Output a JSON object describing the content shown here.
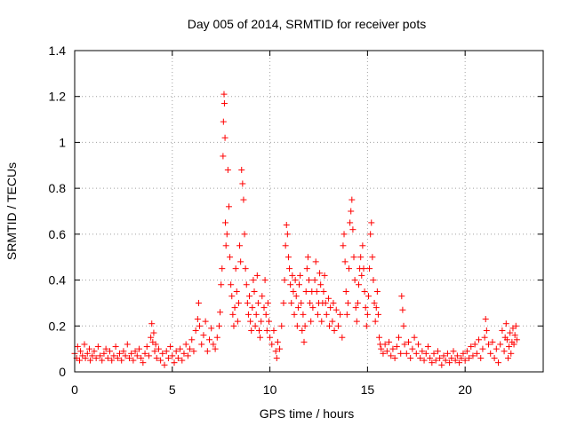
{
  "chart_data": {
    "type": "scatter",
    "title": "Day 005 of 2014, SRMTID for receiver pots",
    "xlabel": "GPS time / hours",
    "ylabel": "SRMTID / TECUs",
    "xlim": [
      0,
      24
    ],
    "ylim": [
      0,
      1.4
    ],
    "xticks": [
      0,
      5,
      10,
      15,
      20
    ],
    "xtick_labels": [
      "0",
      "5",
      "10",
      "15",
      "20"
    ],
    "yticks": [
      0,
      0.2,
      0.4,
      0.6,
      0.8,
      1,
      1.2,
      1.4
    ],
    "ytick_labels": [
      "0",
      "0.2",
      "0.4",
      "0.6",
      "0.8",
      "1",
      "1.2",
      "1.4"
    ],
    "grid": true,
    "marker": "+",
    "color": "#ff0000",
    "series": [
      {
        "name": "SRMTID",
        "points": [
          [
            0.0,
            0.08
          ],
          [
            0.1,
            0.06
          ],
          [
            0.15,
            0.11
          ],
          [
            0.25,
            0.05
          ],
          [
            0.3,
            0.09
          ],
          [
            0.4,
            0.07
          ],
          [
            0.5,
            0.12
          ],
          [
            0.55,
            0.06
          ],
          [
            0.65,
            0.08
          ],
          [
            0.75,
            0.1
          ],
          [
            0.8,
            0.05
          ],
          [
            0.9,
            0.07
          ],
          [
            1.0,
            0.09
          ],
          [
            1.1,
            0.06
          ],
          [
            1.2,
            0.11
          ],
          [
            1.3,
            0.07
          ],
          [
            1.4,
            0.05
          ],
          [
            1.5,
            0.08
          ],
          [
            1.6,
            0.1
          ],
          [
            1.7,
            0.06
          ],
          [
            1.8,
            0.09
          ],
          [
            1.9,
            0.05
          ],
          [
            2.0,
            0.07
          ],
          [
            2.1,
            0.11
          ],
          [
            2.2,
            0.06
          ],
          [
            2.3,
            0.08
          ],
          [
            2.4,
            0.05
          ],
          [
            2.5,
            0.09
          ],
          [
            2.6,
            0.07
          ],
          [
            2.7,
            0.12
          ],
          [
            2.8,
            0.06
          ],
          [
            2.9,
            0.08
          ],
          [
            3.0,
            0.05
          ],
          [
            3.1,
            0.09
          ],
          [
            3.2,
            0.07
          ],
          [
            3.3,
            0.1
          ],
          [
            3.4,
            0.06
          ],
          [
            3.5,
            0.04
          ],
          [
            3.6,
            0.08
          ],
          [
            3.7,
            0.11
          ],
          [
            3.8,
            0.07
          ],
          [
            3.9,
            0.15
          ],
          [
            3.95,
            0.21
          ],
          [
            4.0,
            0.13
          ],
          [
            4.05,
            0.17
          ],
          [
            4.1,
            0.09
          ],
          [
            4.15,
            0.12
          ],
          [
            4.2,
            0.06
          ],
          [
            4.3,
            0.1
          ],
          [
            4.4,
            0.05
          ],
          [
            4.5,
            0.08
          ],
          [
            4.6,
            0.03
          ],
          [
            4.7,
            0.09
          ],
          [
            4.8,
            0.06
          ],
          [
            4.9,
            0.11
          ],
          [
            5.0,
            0.07
          ],
          [
            5.1,
            0.04
          ],
          [
            5.2,
            0.09
          ],
          [
            5.3,
            0.06
          ],
          [
            5.4,
            0.1
          ],
          [
            5.5,
            0.05
          ],
          [
            5.6,
            0.08
          ],
          [
            5.7,
            0.12
          ],
          [
            5.8,
            0.07
          ],
          [
            5.9,
            0.1
          ],
          [
            6.0,
            0.14
          ],
          [
            6.1,
            0.09
          ],
          [
            6.2,
            0.18
          ],
          [
            6.3,
            0.23
          ],
          [
            6.35,
            0.3
          ],
          [
            6.4,
            0.2
          ],
          [
            6.5,
            0.12
          ],
          [
            6.6,
            0.16
          ],
          [
            6.7,
            0.22
          ],
          [
            6.8,
            0.09
          ],
          [
            6.9,
            0.14
          ],
          [
            7.0,
            0.19
          ],
          [
            7.1,
            0.12
          ],
          [
            7.2,
            0.1
          ],
          [
            7.3,
            0.15
          ],
          [
            7.4,
            0.2
          ],
          [
            7.45,
            0.26
          ],
          [
            7.5,
            0.38
          ],
          [
            7.55,
            0.45
          ],
          [
            7.6,
            0.94
          ],
          [
            7.62,
            1.09
          ],
          [
            7.65,
            1.21
          ],
          [
            7.67,
            1.17
          ],
          [
            7.7,
            1.02
          ],
          [
            7.72,
            0.65
          ],
          [
            7.75,
            0.55
          ],
          [
            7.8,
            0.6
          ],
          [
            7.85,
            0.88
          ],
          [
            7.9,
            0.72
          ],
          [
            7.95,
            0.5
          ],
          [
            8.0,
            0.38
          ],
          [
            8.05,
            0.33
          ],
          [
            8.1,
            0.25
          ],
          [
            8.15,
            0.2
          ],
          [
            8.2,
            0.28
          ],
          [
            8.25,
            0.45
          ],
          [
            8.3,
            0.35
          ],
          [
            8.35,
            0.22
          ],
          [
            8.4,
            0.3
          ],
          [
            8.45,
            0.55
          ],
          [
            8.5,
            0.48
          ],
          [
            8.55,
            0.88
          ],
          [
            8.6,
            0.82
          ],
          [
            8.65,
            0.75
          ],
          [
            8.7,
            0.6
          ],
          [
            8.75,
            0.45
          ],
          [
            8.8,
            0.38
          ],
          [
            8.85,
            0.3
          ],
          [
            8.9,
            0.25
          ],
          [
            8.95,
            0.33
          ],
          [
            9.0,
            0.22
          ],
          [
            9.05,
            0.18
          ],
          [
            9.1,
            0.28
          ],
          [
            9.15,
            0.4
          ],
          [
            9.2,
            0.35
          ],
          [
            9.25,
            0.2
          ],
          [
            9.3,
            0.25
          ],
          [
            9.35,
            0.42
          ],
          [
            9.4,
            0.3
          ],
          [
            9.45,
            0.18
          ],
          [
            9.5,
            0.15
          ],
          [
            9.55,
            0.22
          ],
          [
            9.6,
            0.33
          ],
          [
            9.7,
            0.28
          ],
          [
            9.75,
            0.4
          ],
          [
            9.8,
            0.25
          ],
          [
            9.85,
            0.18
          ],
          [
            9.9,
            0.3
          ],
          [
            9.95,
            0.22
          ],
          [
            10.0,
            0.15
          ],
          [
            10.1,
            0.12
          ],
          [
            10.2,
            0.18
          ],
          [
            10.3,
            0.09
          ],
          [
            10.35,
            0.06
          ],
          [
            10.4,
            0.13
          ],
          [
            10.5,
            0.1
          ],
          [
            10.6,
            0.2
          ],
          [
            10.7,
            0.3
          ],
          [
            10.75,
            0.4
          ],
          [
            10.8,
            0.55
          ],
          [
            10.85,
            0.64
          ],
          [
            10.9,
            0.6
          ],
          [
            10.95,
            0.5
          ],
          [
            11.0,
            0.45
          ],
          [
            11.05,
            0.38
          ],
          [
            11.1,
            0.3
          ],
          [
            11.15,
            0.42
          ],
          [
            11.2,
            0.35
          ],
          [
            11.25,
            0.25
          ],
          [
            11.3,
            0.4
          ],
          [
            11.35,
            0.33
          ],
          [
            11.4,
            0.2
          ],
          [
            11.45,
            0.28
          ],
          [
            11.5,
            0.38
          ],
          [
            11.55,
            0.42
          ],
          [
            11.6,
            0.3
          ],
          [
            11.65,
            0.18
          ],
          [
            11.7,
            0.25
          ],
          [
            11.75,
            0.13
          ],
          [
            11.8,
            0.2
          ],
          [
            11.85,
            0.35
          ],
          [
            11.9,
            0.45
          ],
          [
            11.95,
            0.5
          ],
          [
            12.0,
            0.4
          ],
          [
            12.05,
            0.3
          ],
          [
            12.1,
            0.22
          ],
          [
            12.15,
            0.35
          ],
          [
            12.2,
            0.28
          ],
          [
            12.3,
            0.4
          ],
          [
            12.35,
            0.48
          ],
          [
            12.4,
            0.35
          ],
          [
            12.45,
            0.25
          ],
          [
            12.5,
            0.3
          ],
          [
            12.55,
            0.43
          ],
          [
            12.6,
            0.38
          ],
          [
            12.65,
            0.22
          ],
          [
            12.7,
            0.3
          ],
          [
            12.75,
            0.35
          ],
          [
            12.8,
            0.42
          ],
          [
            12.85,
            0.3
          ],
          [
            12.9,
            0.25
          ],
          [
            13.0,
            0.32
          ],
          [
            13.05,
            0.2
          ],
          [
            13.1,
            0.28
          ],
          [
            13.2,
            0.22
          ],
          [
            13.25,
            0.3
          ],
          [
            13.3,
            0.18
          ],
          [
            13.4,
            0.27
          ],
          [
            13.5,
            0.2
          ],
          [
            13.6,
            0.25
          ],
          [
            13.7,
            0.15
          ],
          [
            13.75,
            0.55
          ],
          [
            13.8,
            0.6
          ],
          [
            13.85,
            0.48
          ],
          [
            13.9,
            0.35
          ],
          [
            13.95,
            0.25
          ],
          [
            14.0,
            0.3
          ],
          [
            14.05,
            0.45
          ],
          [
            14.1,
            0.65
          ],
          [
            14.15,
            0.7
          ],
          [
            14.2,
            0.75
          ],
          [
            14.25,
            0.62
          ],
          [
            14.3,
            0.5
          ],
          [
            14.35,
            0.4
          ],
          [
            14.4,
            0.28
          ],
          [
            14.45,
            0.22
          ],
          [
            14.5,
            0.3
          ],
          [
            14.55,
            0.38
          ],
          [
            14.6,
            0.45
          ],
          [
            14.65,
            0.5
          ],
          [
            14.7,
            0.42
          ],
          [
            14.75,
            0.55
          ],
          [
            14.8,
            0.45
          ],
          [
            14.85,
            0.35
          ],
          [
            14.9,
            0.28
          ],
          [
            14.95,
            0.2
          ],
          [
            15.0,
            0.25
          ],
          [
            15.05,
            0.33
          ],
          [
            15.1,
            0.45
          ],
          [
            15.15,
            0.6
          ],
          [
            15.2,
            0.65
          ],
          [
            15.25,
            0.5
          ],
          [
            15.3,
            0.4
          ],
          [
            15.35,
            0.3
          ],
          [
            15.4,
            0.22
          ],
          [
            15.45,
            0.28
          ],
          [
            15.5,
            0.35
          ],
          [
            15.55,
            0.25
          ],
          [
            15.6,
            0.15
          ],
          [
            15.65,
            0.12
          ],
          [
            15.7,
            0.1
          ],
          [
            15.8,
            0.08
          ],
          [
            15.9,
            0.12
          ],
          [
            16.0,
            0.09
          ],
          [
            16.1,
            0.13
          ],
          [
            16.2,
            0.07
          ],
          [
            16.3,
            0.1
          ],
          [
            16.4,
            0.06
          ],
          [
            16.5,
            0.11
          ],
          [
            16.6,
            0.15
          ],
          [
            16.7,
            0.08
          ],
          [
            16.75,
            0.33
          ],
          [
            16.8,
            0.27
          ],
          [
            16.85,
            0.2
          ],
          [
            16.9,
            0.12
          ],
          [
            17.0,
            0.08
          ],
          [
            17.1,
            0.13
          ],
          [
            17.2,
            0.06
          ],
          [
            17.3,
            0.1
          ],
          [
            17.4,
            0.15
          ],
          [
            17.5,
            0.08
          ],
          [
            17.6,
            0.12
          ],
          [
            17.7,
            0.06
          ],
          [
            17.8,
            0.09
          ],
          [
            17.9,
            0.05
          ],
          [
            18.0,
            0.08
          ],
          [
            18.1,
            0.11
          ],
          [
            18.2,
            0.06
          ],
          [
            18.3,
            0.04
          ],
          [
            18.4,
            0.08
          ],
          [
            18.5,
            0.05
          ],
          [
            18.6,
            0.09
          ],
          [
            18.7,
            0.06
          ],
          [
            18.8,
            0.03
          ],
          [
            18.9,
            0.07
          ],
          [
            19.0,
            0.05
          ],
          [
            19.1,
            0.08
          ],
          [
            19.2,
            0.04
          ],
          [
            19.3,
            0.06
          ],
          [
            19.4,
            0.09
          ],
          [
            19.5,
            0.05
          ],
          [
            19.6,
            0.07
          ],
          [
            19.7,
            0.04
          ],
          [
            19.8,
            0.06
          ],
          [
            19.9,
            0.08
          ],
          [
            20.0,
            0.05
          ],
          [
            20.1,
            0.09
          ],
          [
            20.2,
            0.06
          ],
          [
            20.3,
            0.11
          ],
          [
            20.4,
            0.07
          ],
          [
            20.5,
            0.12
          ],
          [
            20.6,
            0.08
          ],
          [
            20.7,
            0.14
          ],
          [
            20.8,
            0.06
          ],
          [
            20.9,
            0.1
          ],
          [
            21.0,
            0.15
          ],
          [
            21.05,
            0.23
          ],
          [
            21.1,
            0.18
          ],
          [
            21.2,
            0.12
          ],
          [
            21.3,
            0.08
          ],
          [
            21.4,
            0.13
          ],
          [
            21.5,
            0.06
          ],
          [
            21.6,
            0.1
          ],
          [
            21.7,
            0.04
          ],
          [
            21.8,
            0.12
          ],
          [
            21.9,
            0.18
          ],
          [
            22.0,
            0.09
          ],
          [
            22.05,
            0.15
          ],
          [
            22.1,
            0.21
          ],
          [
            22.15,
            0.14
          ],
          [
            22.2,
            0.06
          ],
          [
            22.25,
            0.11
          ],
          [
            22.3,
            0.17
          ],
          [
            22.35,
            0.08
          ],
          [
            22.4,
            0.13
          ],
          [
            22.45,
            0.19
          ],
          [
            22.5,
            0.12
          ],
          [
            22.55,
            0.16
          ],
          [
            22.6,
            0.2
          ],
          [
            22.65,
            0.14
          ]
        ]
      }
    ]
  }
}
